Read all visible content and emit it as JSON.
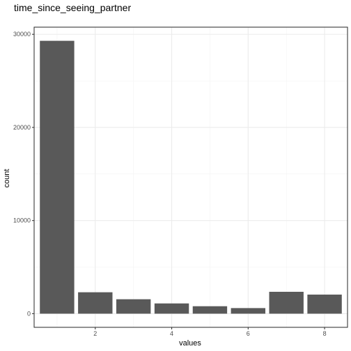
{
  "chart_data": {
    "type": "bar",
    "title": "time_since_seeing_partner",
    "xlabel": "values",
    "ylabel": "count",
    "x": [
      1,
      2,
      3,
      4,
      5,
      6,
      7,
      8
    ],
    "values": [
      29300,
      2300,
      1550,
      1100,
      800,
      600,
      2350,
      2050
    ],
    "xlim": [
      0.4,
      8.6
    ],
    "ylim": [
      -1465,
      30765
    ],
    "x_ticks": [
      2,
      4,
      6,
      8
    ],
    "y_ticks": [
      0,
      10000,
      20000,
      30000
    ],
    "x_tick_labels": [
      "2",
      "4",
      "6",
      "8"
    ],
    "y_tick_labels": [
      "0",
      "10000",
      "20000",
      "30000"
    ],
    "bar_color": "#595959",
    "grid": true,
    "theme": "bw"
  }
}
